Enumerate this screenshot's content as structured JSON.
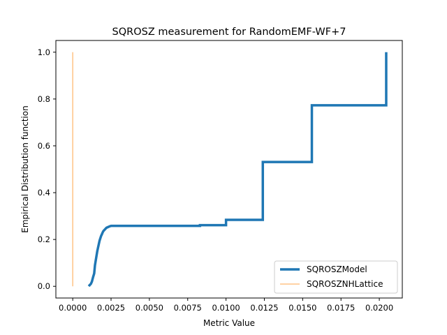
{
  "chart_data": {
    "type": "line",
    "title": "SQROSZ measurement for RandomEMF-WF+7",
    "xlabel": "Metric Value",
    "ylabel": "Empirical Distribution function",
    "xlim": [
      -0.0011,
      0.0215
    ],
    "ylim": [
      -0.05,
      1.05
    ],
    "xticks": [
      0.0,
      0.0025,
      0.005,
      0.0075,
      0.01,
      0.0125,
      0.015,
      0.0175,
      0.02
    ],
    "xtick_labels": [
      "0.0000",
      "0.0025",
      "0.0050",
      "0.0075",
      "0.0100",
      "0.0125",
      "0.0150",
      "0.0175",
      "0.0200"
    ],
    "yticks": [
      0.0,
      0.2,
      0.4,
      0.6,
      0.8,
      1.0
    ],
    "ytick_labels": [
      "0.0",
      "0.2",
      "0.4",
      "0.6",
      "0.8",
      "1.0"
    ],
    "grid": false,
    "legend_position": "lower right",
    "series": [
      {
        "name": "SQROSZModel",
        "color": "#1f77b4",
        "points": [
          [
            0.00105,
            0.0
          ],
          [
            0.0011,
            0.005
          ],
          [
            0.00118,
            0.01
          ],
          [
            0.00125,
            0.02
          ],
          [
            0.00133,
            0.04
          ],
          [
            0.0014,
            0.055
          ],
          [
            0.00145,
            0.09
          ],
          [
            0.0015,
            0.11
          ],
          [
            0.00155,
            0.13
          ],
          [
            0.0016,
            0.15
          ],
          [
            0.00165,
            0.165
          ],
          [
            0.0017,
            0.18
          ],
          [
            0.00175,
            0.195
          ],
          [
            0.0018,
            0.205
          ],
          [
            0.00185,
            0.215
          ],
          [
            0.0019,
            0.222
          ],
          [
            0.00195,
            0.23
          ],
          [
            0.002,
            0.236
          ],
          [
            0.0021,
            0.243
          ],
          [
            0.0022,
            0.25
          ],
          [
            0.0023,
            0.253
          ],
          [
            0.0024,
            0.256
          ],
          [
            0.0025,
            0.258
          ],
          [
            0.0083,
            0.258
          ],
          [
            0.0083,
            0.261
          ],
          [
            0.01,
            0.261
          ],
          [
            0.01,
            0.284
          ],
          [
            0.0124,
            0.284
          ],
          [
            0.0124,
            0.531
          ],
          [
            0.0156,
            0.531
          ],
          [
            0.0156,
            0.773
          ],
          [
            0.02045,
            0.773
          ],
          [
            0.02045,
            1.0
          ]
        ]
      },
      {
        "name": "SQROSZNHLattice",
        "color": "#ffbb78",
        "points": [
          [
            0.0,
            0.0
          ],
          [
            0.0,
            1.0
          ]
        ]
      }
    ]
  }
}
